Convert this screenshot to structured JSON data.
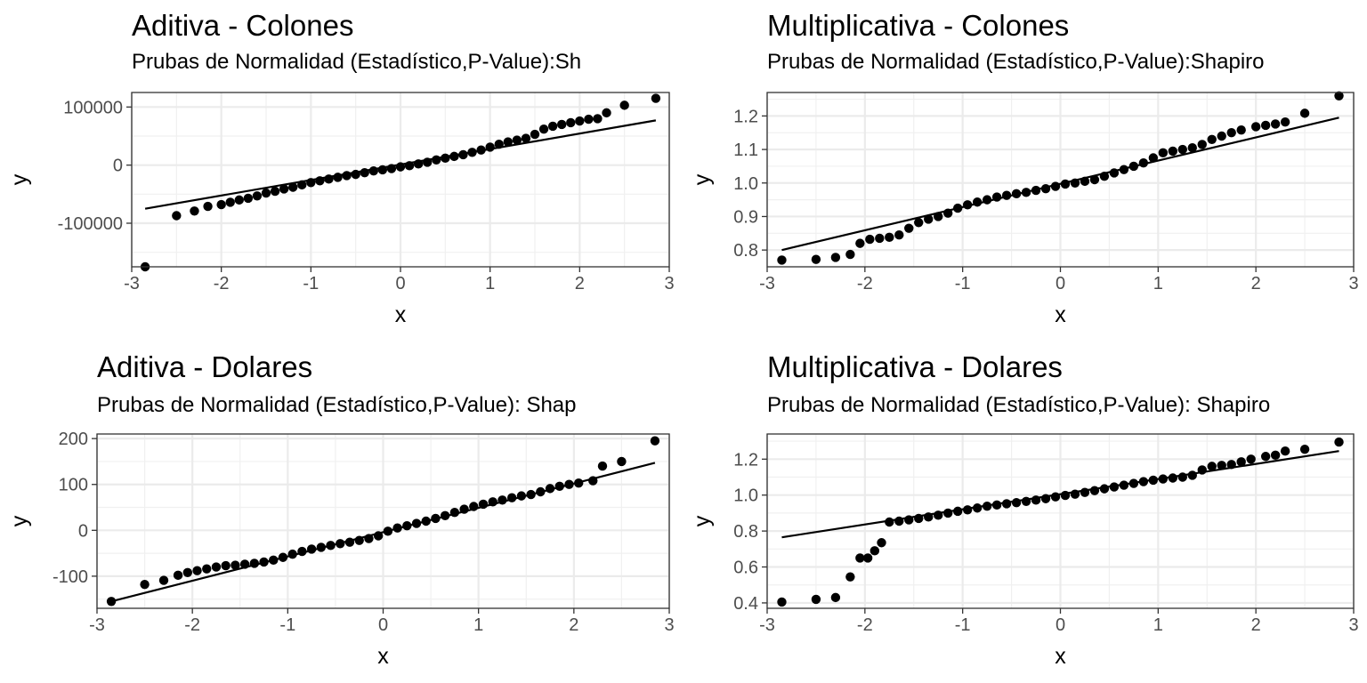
{
  "chart_data": [
    {
      "type": "scatter",
      "title": "Aditiva - Colones",
      "subtitle": "Prubas de Normalidad (Estadístico,P-Value):Sh",
      "xlabel": "x",
      "ylabel": "y",
      "xlim": [
        -3,
        3
      ],
      "ylim": [
        -175000,
        125000
      ],
      "x_ticks": [
        -3,
        -2,
        -1,
        0,
        1,
        2,
        3
      ],
      "x_tick_labels": [
        "-3",
        "-2",
        "-1",
        "0",
        "1",
        "2",
        "3"
      ],
      "y_ticks": [
        -100000,
        0,
        100000
      ],
      "y_tick_labels": [
        "-100000",
        "0",
        "100000"
      ],
      "grid": true,
      "reference_line": [
        [
          -2.85,
          -75000
        ],
        [
          2.85,
          77000
        ]
      ],
      "points": [
        [
          -2.85,
          -175000
        ],
        [
          -2.5,
          -87000
        ],
        [
          -2.3,
          -79000
        ],
        [
          -2.15,
          -71000
        ],
        [
          -2.0,
          -68000
        ],
        [
          -1.9,
          -64000
        ],
        [
          -1.8,
          -60000
        ],
        [
          -1.7,
          -57000
        ],
        [
          -1.6,
          -53000
        ],
        [
          -1.5,
          -48000
        ],
        [
          -1.4,
          -45000
        ],
        [
          -1.3,
          -41000
        ],
        [
          -1.2,
          -38000
        ],
        [
          -1.1,
          -34000
        ],
        [
          -1.0,
          -30000
        ],
        [
          -0.9,
          -27000
        ],
        [
          -0.8,
          -24000
        ],
        [
          -0.7,
          -21000
        ],
        [
          -0.6,
          -18000
        ],
        [
          -0.5,
          -16000
        ],
        [
          -0.4,
          -13000
        ],
        [
          -0.3,
          -10000
        ],
        [
          -0.2,
          -8000
        ],
        [
          -0.1,
          -6000
        ],
        [
          0.0,
          -3000
        ],
        [
          0.1,
          -1000
        ],
        [
          0.2,
          2000
        ],
        [
          0.3,
          5000
        ],
        [
          0.4,
          9000
        ],
        [
          0.5,
          12000
        ],
        [
          0.6,
          15000
        ],
        [
          0.7,
          18000
        ],
        [
          0.8,
          22000
        ],
        [
          0.9,
          26000
        ],
        [
          1.0,
          31000
        ],
        [
          1.1,
          36000
        ],
        [
          1.2,
          40000
        ],
        [
          1.3,
          43000
        ],
        [
          1.4,
          46000
        ],
        [
          1.5,
          53000
        ],
        [
          1.6,
          62000
        ],
        [
          1.7,
          67000
        ],
        [
          1.8,
          70000
        ],
        [
          1.9,
          73000
        ],
        [
          2.0,
          76000
        ],
        [
          2.1,
          79000
        ],
        [
          2.2,
          80000
        ],
        [
          2.3,
          90000
        ],
        [
          2.5,
          103000
        ],
        [
          2.85,
          115000
        ]
      ]
    },
    {
      "type": "scatter",
      "title": "Multiplicativa - Colones",
      "subtitle": "Prubas de Normalidad (Estadístico,P-Value):Shapiro",
      "xlabel": "x",
      "ylabel": "y",
      "xlim": [
        -3,
        3
      ],
      "ylim": [
        0.75,
        1.27
      ],
      "x_ticks": [
        -3,
        -2,
        -1,
        0,
        1,
        2,
        3
      ],
      "x_tick_labels": [
        "-3",
        "-2",
        "-1",
        "0",
        "1",
        "2",
        "3"
      ],
      "y_ticks": [
        0.8,
        0.9,
        1.0,
        1.1,
        1.2
      ],
      "y_tick_labels": [
        "0.8",
        "0.9",
        "1.0",
        "1.1",
        "1.2"
      ],
      "grid": true,
      "reference_line": [
        [
          -2.85,
          0.8
        ],
        [
          2.85,
          1.195
        ]
      ],
      "points": [
        [
          -2.85,
          0.77
        ],
        [
          -2.5,
          0.772
        ],
        [
          -2.3,
          0.778
        ],
        [
          -2.15,
          0.787
        ],
        [
          -2.05,
          0.82
        ],
        [
          -1.95,
          0.832
        ],
        [
          -1.85,
          0.835
        ],
        [
          -1.75,
          0.838
        ],
        [
          -1.65,
          0.845
        ],
        [
          -1.55,
          0.865
        ],
        [
          -1.45,
          0.882
        ],
        [
          -1.35,
          0.892
        ],
        [
          -1.25,
          0.9
        ],
        [
          -1.15,
          0.91
        ],
        [
          -1.05,
          0.925
        ],
        [
          -0.95,
          0.935
        ],
        [
          -0.85,
          0.943
        ],
        [
          -0.75,
          0.95
        ],
        [
          -0.65,
          0.958
        ],
        [
          -0.55,
          0.963
        ],
        [
          -0.45,
          0.968
        ],
        [
          -0.35,
          0.972
        ],
        [
          -0.25,
          0.978
        ],
        [
          -0.15,
          0.983
        ],
        [
          -0.05,
          0.99
        ],
        [
          0.05,
          0.997
        ],
        [
          0.15,
          1.0
        ],
        [
          0.25,
          1.005
        ],
        [
          0.35,
          1.01
        ],
        [
          0.45,
          1.02
        ],
        [
          0.55,
          1.03
        ],
        [
          0.65,
          1.04
        ],
        [
          0.75,
          1.05
        ],
        [
          0.85,
          1.06
        ],
        [
          0.95,
          1.075
        ],
        [
          1.05,
          1.09
        ],
        [
          1.15,
          1.095
        ],
        [
          1.25,
          1.1
        ],
        [
          1.35,
          1.105
        ],
        [
          1.45,
          1.115
        ],
        [
          1.55,
          1.13
        ],
        [
          1.65,
          1.14
        ],
        [
          1.75,
          1.15
        ],
        [
          1.85,
          1.158
        ],
        [
          2.0,
          1.168
        ],
        [
          2.1,
          1.172
        ],
        [
          2.2,
          1.176
        ],
        [
          2.3,
          1.182
        ],
        [
          2.5,
          1.208
        ],
        [
          2.85,
          1.26
        ]
      ]
    },
    {
      "type": "scatter",
      "title": "Aditiva - Dolares",
      "subtitle": "Prubas de Normalidad (Estadístico,P-Value): Shap",
      "xlabel": "x",
      "ylabel": "y",
      "xlim": [
        -3,
        3
      ],
      "ylim": [
        -170,
        210
      ],
      "x_ticks": [
        -3,
        -2,
        -1,
        0,
        1,
        2,
        3
      ],
      "x_tick_labels": [
        "-3",
        "-2",
        "-1",
        "0",
        "1",
        "2",
        "3"
      ],
      "y_ticks": [
        -100,
        0,
        100,
        200
      ],
      "y_tick_labels": [
        "-100",
        "0",
        "100",
        "200"
      ],
      "grid": true,
      "reference_line": [
        [
          -2.85,
          -155
        ],
        [
          2.85,
          147
        ]
      ],
      "points": [
        [
          -2.85,
          -155
        ],
        [
          -2.5,
          -118
        ],
        [
          -2.3,
          -109
        ],
        [
          -2.15,
          -98
        ],
        [
          -2.05,
          -92
        ],
        [
          -1.95,
          -88
        ],
        [
          -1.85,
          -84
        ],
        [
          -1.75,
          -80
        ],
        [
          -1.65,
          -77
        ],
        [
          -1.55,
          -76
        ],
        [
          -1.45,
          -74
        ],
        [
          -1.35,
          -72
        ],
        [
          -1.25,
          -69
        ],
        [
          -1.15,
          -65
        ],
        [
          -1.05,
          -59
        ],
        [
          -0.95,
          -52
        ],
        [
          -0.85,
          -46
        ],
        [
          -0.75,
          -41
        ],
        [
          -0.65,
          -37
        ],
        [
          -0.55,
          -33
        ],
        [
          -0.45,
          -29
        ],
        [
          -0.35,
          -26
        ],
        [
          -0.25,
          -22
        ],
        [
          -0.15,
          -18
        ],
        [
          -0.05,
          -12
        ],
        [
          0.05,
          -2
        ],
        [
          0.15,
          5
        ],
        [
          0.25,
          10
        ],
        [
          0.35,
          15
        ],
        [
          0.45,
          20
        ],
        [
          0.55,
          26
        ],
        [
          0.65,
          32
        ],
        [
          0.75,
          39
        ],
        [
          0.85,
          46
        ],
        [
          0.95,
          52
        ],
        [
          1.05,
          57
        ],
        [
          1.15,
          62
        ],
        [
          1.25,
          66
        ],
        [
          1.35,
          71
        ],
        [
          1.45,
          75
        ],
        [
          1.55,
          78
        ],
        [
          1.65,
          84
        ],
        [
          1.75,
          91
        ],
        [
          1.85,
          96
        ],
        [
          1.95,
          100
        ],
        [
          2.05,
          103
        ],
        [
          2.2,
          108
        ],
        [
          2.3,
          140
        ],
        [
          2.5,
          150
        ],
        [
          2.85,
          195
        ]
      ]
    },
    {
      "type": "scatter",
      "title": "Multiplicativa - Dolares",
      "subtitle": "Prubas de Normalidad (Estadístico,P-Value): Shapiro",
      "xlabel": "x",
      "ylabel": "y",
      "xlim": [
        -3,
        3
      ],
      "ylim": [
        0.37,
        1.34
      ],
      "x_ticks": [
        -3,
        -2,
        -1,
        0,
        1,
        2,
        3
      ],
      "x_tick_labels": [
        "-3",
        "-2",
        "-1",
        "0",
        "1",
        "2",
        "3"
      ],
      "y_ticks": [
        0.4,
        0.6,
        0.8,
        1.0,
        1.2
      ],
      "y_tick_labels": [
        "0.4",
        "0.6",
        "0.8",
        "1.0",
        "1.2"
      ],
      "grid": true,
      "reference_line": [
        [
          -2.85,
          0.765
        ],
        [
          2.85,
          1.245
        ]
      ],
      "points": [
        [
          -2.85,
          0.405
        ],
        [
          -2.5,
          0.42
        ],
        [
          -2.3,
          0.43
        ],
        [
          -2.15,
          0.545
        ],
        [
          -2.05,
          0.65
        ],
        [
          -1.97,
          0.65
        ],
        [
          -1.9,
          0.69
        ],
        [
          -1.83,
          0.735
        ],
        [
          -1.75,
          0.85
        ],
        [
          -1.65,
          0.855
        ],
        [
          -1.55,
          0.862
        ],
        [
          -1.45,
          0.87
        ],
        [
          -1.35,
          0.878
        ],
        [
          -1.25,
          0.888
        ],
        [
          -1.15,
          0.9
        ],
        [
          -1.05,
          0.91
        ],
        [
          -0.95,
          0.918
        ],
        [
          -0.85,
          0.928
        ],
        [
          -0.75,
          0.938
        ],
        [
          -0.65,
          0.945
        ],
        [
          -0.55,
          0.952
        ],
        [
          -0.45,
          0.958
        ],
        [
          -0.35,
          0.965
        ],
        [
          -0.25,
          0.972
        ],
        [
          -0.15,
          0.98
        ],
        [
          -0.05,
          0.99
        ],
        [
          0.05,
          0.998
        ],
        [
          0.15,
          1.005
        ],
        [
          0.25,
          1.015
        ],
        [
          0.35,
          1.025
        ],
        [
          0.45,
          1.035
        ],
        [
          0.55,
          1.045
        ],
        [
          0.65,
          1.055
        ],
        [
          0.75,
          1.065
        ],
        [
          0.85,
          1.075
        ],
        [
          0.95,
          1.083
        ],
        [
          1.05,
          1.09
        ],
        [
          1.15,
          1.095
        ],
        [
          1.25,
          1.1
        ],
        [
          1.35,
          1.11
        ],
        [
          1.45,
          1.14
        ],
        [
          1.55,
          1.16
        ],
        [
          1.65,
          1.165
        ],
        [
          1.75,
          1.17
        ],
        [
          1.85,
          1.185
        ],
        [
          1.95,
          1.2
        ],
        [
          2.1,
          1.215
        ],
        [
          2.2,
          1.222
        ],
        [
          2.3,
          1.245
        ],
        [
          2.5,
          1.255
        ],
        [
          2.85,
          1.295
        ]
      ]
    }
  ]
}
